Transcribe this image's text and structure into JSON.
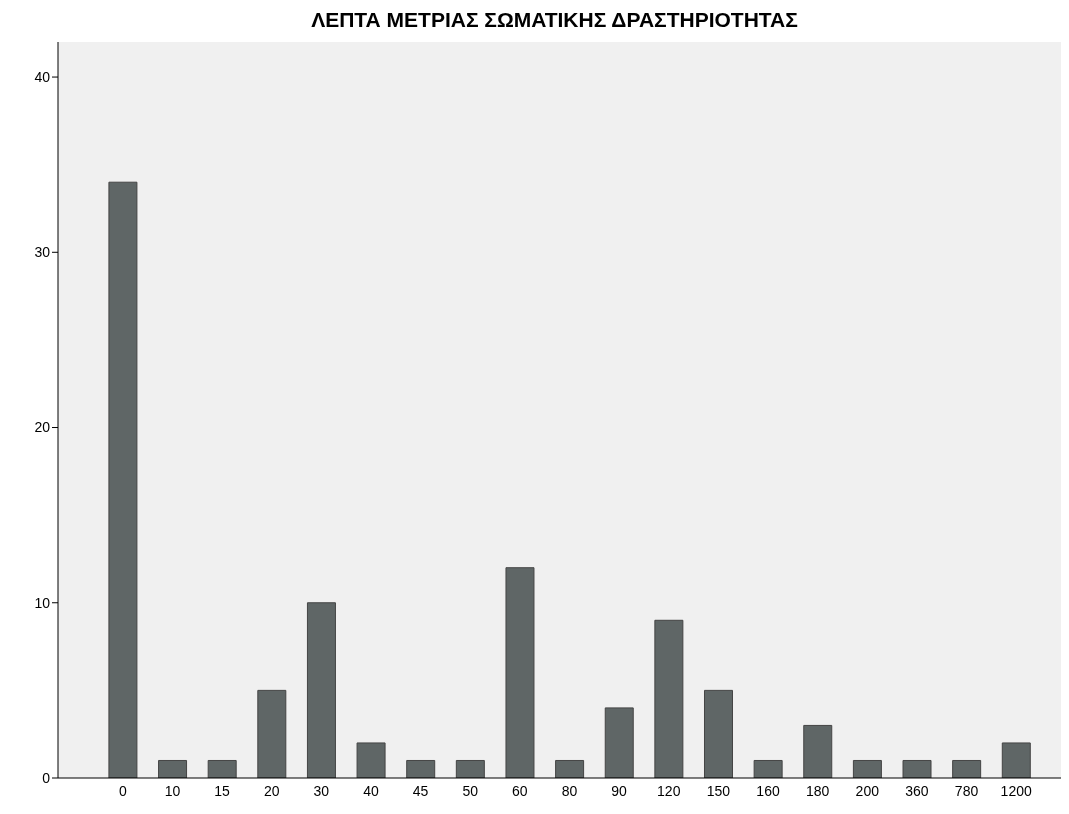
{
  "chart_data": {
    "type": "bar",
    "title": "ΛΕΠΤΑ ΜΕΤΡΙΑΣ ΣΩΜΑΤΙΚΗΣ ΔΡΑΣΤΗΡΙΟΤΗΤΑΣ",
    "categories": [
      "0",
      "10",
      "15",
      "20",
      "30",
      "40",
      "45",
      "50",
      "60",
      "80",
      "90",
      "120",
      "150",
      "160",
      "180",
      "200",
      "360",
      "780",
      "1200"
    ],
    "values": [
      34,
      1,
      1,
      5,
      10,
      2,
      1,
      1,
      12,
      1,
      4,
      9,
      5,
      1,
      3,
      1,
      1,
      1,
      2
    ],
    "color": "#5f6666",
    "ylim": [
      0,
      42
    ],
    "yticks": [
      0,
      10,
      20,
      30,
      40
    ],
    "grid": false
  }
}
